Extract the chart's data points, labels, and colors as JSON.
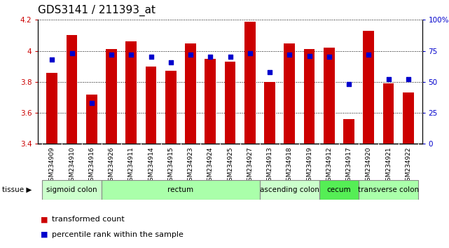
{
  "title": "GDS3141 / 211393_at",
  "samples": [
    "GSM234909",
    "GSM234910",
    "GSM234916",
    "GSM234926",
    "GSM234911",
    "GSM234914",
    "GSM234915",
    "GSM234923",
    "GSM234924",
    "GSM234925",
    "GSM234927",
    "GSM234913",
    "GSM234918",
    "GSM234919",
    "GSM234912",
    "GSM234917",
    "GSM234920",
    "GSM234921",
    "GSM234922"
  ],
  "transformed_count": [
    3.86,
    4.1,
    3.72,
    4.01,
    4.06,
    3.9,
    3.87,
    4.05,
    3.95,
    3.93,
    4.19,
    3.8,
    4.05,
    4.01,
    4.02,
    3.56,
    4.13,
    3.79,
    3.73
  ],
  "percentile_rank": [
    68,
    73,
    33,
    72,
    72,
    70,
    66,
    72,
    70,
    70,
    73,
    58,
    72,
    71,
    70,
    48,
    72,
    52,
    52
  ],
  "ylim_left": [
    3.4,
    4.2
  ],
  "ylim_right": [
    0,
    100
  ],
  "yticks_left": [
    3.4,
    3.6,
    3.8,
    4.0,
    4.2
  ],
  "yticks_right": [
    0,
    25,
    50,
    75,
    100
  ],
  "tissue_groups": [
    {
      "label": "sigmoid colon",
      "start": 0,
      "end": 3,
      "color": "#ccffcc"
    },
    {
      "label": "rectum",
      "start": 3,
      "end": 11,
      "color": "#aaffaa"
    },
    {
      "label": "ascending colon",
      "start": 11,
      "end": 14,
      "color": "#ccffcc"
    },
    {
      "label": "cecum",
      "start": 14,
      "end": 16,
      "color": "#55ee55"
    },
    {
      "label": "transverse colon",
      "start": 16,
      "end": 19,
      "color": "#aaffaa"
    }
  ],
  "bar_color": "#cc0000",
  "dot_color": "#0000cc",
  "bar_width": 0.55,
  "grid_color": "#000000",
  "background_color": "#ffffff",
  "ylabel_left_color": "#cc0000",
  "ylabel_right_color": "#0000cc",
  "tissue_label_color": "#000000",
  "title_fontsize": 11,
  "tick_fontsize": 6.5,
  "tissue_fontsize": 7.5,
  "legend_fontsize": 8
}
